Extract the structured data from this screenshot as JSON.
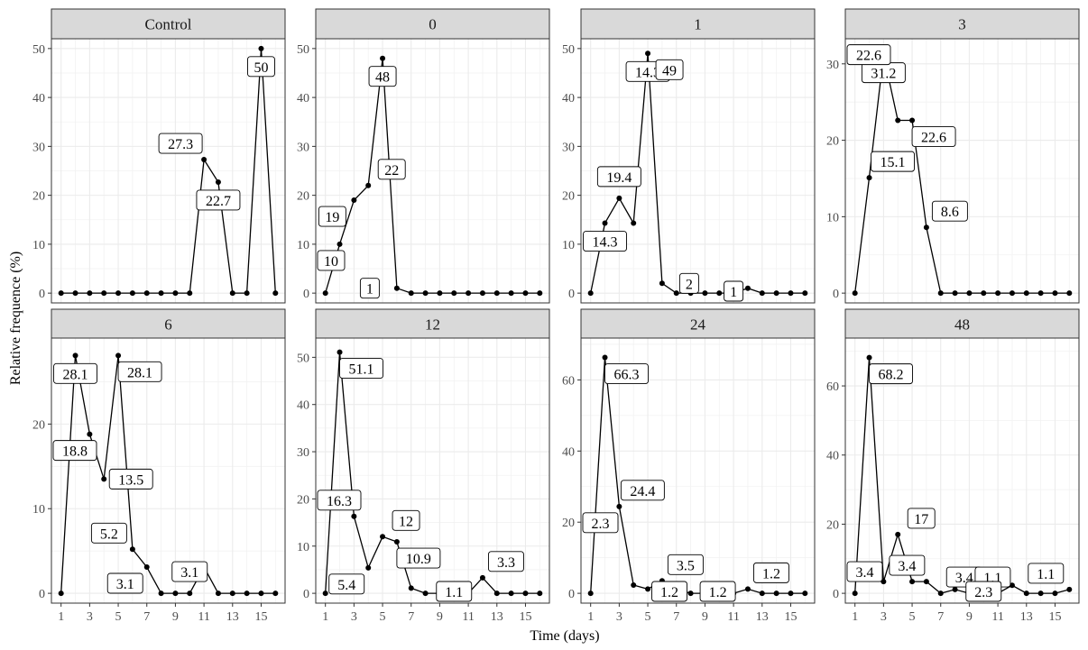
{
  "chart_data": {
    "type": "line",
    "x_label": "Time (days)",
    "y_label": "Relative frequence (%)",
    "x_range": [
      1,
      16
    ],
    "x_ticks": [
      1,
      3,
      5,
      7,
      9,
      11,
      13,
      15
    ],
    "facets": [
      {
        "title": "Control",
        "y_range": [
          0,
          50
        ],
        "y_ticks": [
          0,
          10,
          20,
          30,
          40,
          50
        ],
        "x": [
          1,
          2,
          3,
          4,
          5,
          6,
          7,
          8,
          9,
          10,
          11,
          12,
          13,
          14,
          15,
          16
        ],
        "y": [
          0,
          0,
          0,
          0,
          0,
          0,
          0,
          0,
          0,
          0,
          27.3,
          22.7,
          0,
          0,
          50,
          0
        ],
        "labels": [
          {
            "x": 11,
            "text": "27.3",
            "place": "upper-left"
          },
          {
            "x": 12,
            "text": "22.7",
            "place": "lower"
          },
          {
            "x": 15,
            "text": "50",
            "place": "lower"
          }
        ]
      },
      {
        "title": "0",
        "y_range": [
          0,
          50
        ],
        "y_ticks": [
          0,
          10,
          20,
          30,
          40,
          50
        ],
        "x": [
          1,
          2,
          3,
          4,
          5,
          6,
          7,
          8,
          9,
          10,
          11,
          12,
          13,
          14,
          15,
          16
        ],
        "y": [
          0,
          10,
          19,
          22,
          48,
          1,
          0,
          0,
          0,
          0,
          0,
          0,
          0,
          0,
          0,
          0
        ],
        "labels": [
          {
            "x": 2,
            "text": "10",
            "place": "lower-left"
          },
          {
            "x": 3,
            "text": "19",
            "place": "lower-left"
          },
          {
            "x": 4,
            "text": "22",
            "place": "upper-right"
          },
          {
            "x": 5,
            "text": "48",
            "place": "lower"
          },
          {
            "x": 6,
            "text": "1",
            "place": "left"
          }
        ]
      },
      {
        "title": "1",
        "y_range": [
          0,
          50
        ],
        "y_ticks": [
          0,
          10,
          20,
          30,
          40,
          50
        ],
        "x": [
          1,
          2,
          3,
          4,
          5,
          6,
          7,
          8,
          9,
          10,
          11,
          12,
          13,
          14,
          15,
          16
        ],
        "y": [
          0,
          14.3,
          19.4,
          14.3,
          49,
          2,
          0,
          0,
          0,
          0,
          0,
          1,
          0,
          0,
          0,
          0
        ],
        "labels": [
          {
            "x": 2,
            "text": "14.3",
            "place": "lower"
          },
          {
            "x": 3,
            "text": "19.4",
            "place": "upper"
          },
          {
            "x": 5,
            "text": "14.3",
            "place": "lower"
          },
          {
            "x": 5,
            "text": "49",
            "place": "lower-right"
          },
          {
            "x": 6,
            "text": "2",
            "place": "right"
          },
          {
            "x": 11,
            "text": "1",
            "place": "center"
          }
        ]
      },
      {
        "title": "3",
        "y_range": [
          0,
          32
        ],
        "y_ticks": [
          0,
          10,
          20,
          30
        ],
        "x": [
          1,
          2,
          3,
          4,
          5,
          6,
          7,
          8,
          9,
          10,
          11,
          12,
          13,
          14,
          15,
          16
        ],
        "y": [
          0,
          15.1,
          31.2,
          22.6,
          22.6,
          8.6,
          0,
          0,
          0,
          0,
          0,
          0,
          0,
          0,
          0,
          0
        ],
        "labels": [
          {
            "x": 2,
            "text": "15.1",
            "place": "upper-right"
          },
          {
            "x": 3,
            "text": "31.2",
            "place": "lower"
          },
          {
            "x": 3,
            "text": "22.6",
            "place": "left"
          },
          {
            "x": 5,
            "text": "22.6",
            "place": "lower-right"
          },
          {
            "x": 6,
            "text": "8.6",
            "place": "upper-right"
          }
        ]
      },
      {
        "title": "6",
        "y_range": [
          0,
          29
        ],
        "y_ticks": [
          0,
          10,
          20
        ],
        "x": [
          1,
          2,
          3,
          4,
          5,
          6,
          7,
          8,
          9,
          10,
          11,
          12,
          13,
          14,
          15,
          16
        ],
        "y": [
          0,
          28.1,
          18.8,
          13.5,
          28.1,
          5.2,
          3.1,
          0,
          0,
          0,
          3.1,
          0,
          0,
          0,
          0,
          0
        ],
        "labels": [
          {
            "x": 2,
            "text": "28.1",
            "place": "lower"
          },
          {
            "x": 3,
            "text": "18.8",
            "place": "lower-left"
          },
          {
            "x": 4,
            "text": "13.5",
            "place": "right"
          },
          {
            "x": 5,
            "text": "28.1",
            "place": "lower-right"
          },
          {
            "x": 6,
            "text": "5.2",
            "place": "upper-left"
          },
          {
            "x": 7,
            "text": "3.1",
            "place": "lower-left"
          },
          {
            "x": 10,
            "text": "3.1",
            "place": "upper"
          }
        ]
      },
      {
        "title": "12",
        "y_range": [
          0,
          52
        ],
        "y_ticks": [
          0,
          10,
          20,
          30,
          40,
          50
        ],
        "x": [
          1,
          2,
          3,
          4,
          5,
          6,
          7,
          8,
          9,
          10,
          11,
          12,
          13,
          14,
          15,
          16
        ],
        "y": [
          0,
          51.1,
          16.3,
          5.4,
          12,
          10.9,
          1.1,
          0,
          0,
          0,
          0,
          3.3,
          0,
          0,
          0,
          0
        ],
        "labels": [
          {
            "x": 2,
            "text": "51.1",
            "place": "lower-right"
          },
          {
            "x": 3,
            "text": "16.3",
            "place": "upper-left"
          },
          {
            "x": 4,
            "text": "5.4",
            "place": "lower-left"
          },
          {
            "x": 5,
            "text": "12",
            "place": "upper-right"
          },
          {
            "x": 6,
            "text": "10.9",
            "place": "lower-right"
          },
          {
            "x": 10,
            "text": "1.1",
            "place": "lower"
          },
          {
            "x": 12,
            "text": "3.3",
            "place": "upper-right"
          }
        ]
      },
      {
        "title": "24",
        "y_range": [
          0,
          69
        ],
        "y_ticks": [
          0,
          20,
          40,
          60
        ],
        "x": [
          1,
          2,
          3,
          4,
          5,
          6,
          7,
          8,
          9,
          10,
          11,
          12,
          13,
          14,
          15,
          16
        ],
        "y": [
          0,
          66.3,
          24.4,
          2.3,
          1.2,
          3.5,
          1.2,
          0,
          0,
          0,
          0,
          1.2,
          0,
          0,
          0,
          0
        ],
        "labels": [
          {
            "x": 2,
            "text": "66.3",
            "place": "lower-right"
          },
          {
            "x": 3,
            "text": "24.4",
            "place": "upper-right"
          },
          {
            "x": 3,
            "text": "2.3",
            "place": "lower-left"
          },
          {
            "x": 5,
            "text": "1.2",
            "place": "lower-right"
          },
          {
            "x": 6,
            "text": "3.5",
            "place": "upper-right"
          },
          {
            "x": 8,
            "text": "1.2",
            "place": "right"
          },
          {
            "x": 12,
            "text": "1.2",
            "place": "upper-right"
          }
        ]
      },
      {
        "title": "48",
        "y_range": [
          0,
          71
        ],
        "y_ticks": [
          0,
          20,
          40,
          60
        ],
        "x": [
          1,
          2,
          3,
          4,
          5,
          6,
          7,
          8,
          9,
          10,
          11,
          12,
          13,
          14,
          15,
          16
        ],
        "y": [
          0,
          68.2,
          3.4,
          17,
          3.4,
          3.4,
          0,
          1.1,
          0,
          0,
          0,
          2.3,
          0,
          0,
          0,
          1.1
        ],
        "labels": [
          {
            "x": 1,
            "text": "3.4",
            "place": "upper"
          },
          {
            "x": 2,
            "text": "68.2",
            "place": "lower-right"
          },
          {
            "x": 3,
            "text": "3.4",
            "place": "upper-right"
          },
          {
            "x": 4,
            "text": "17",
            "place": "upper-right"
          },
          {
            "x": 7,
            "text": "3.4",
            "place": "upper-right"
          },
          {
            "x": 9,
            "text": "1.1",
            "place": "upper-right"
          },
          {
            "x": 10,
            "text": "2.3",
            "place": "center"
          },
          {
            "x": 16,
            "text": "1.1",
            "place": "upper-left"
          }
        ]
      }
    ]
  }
}
